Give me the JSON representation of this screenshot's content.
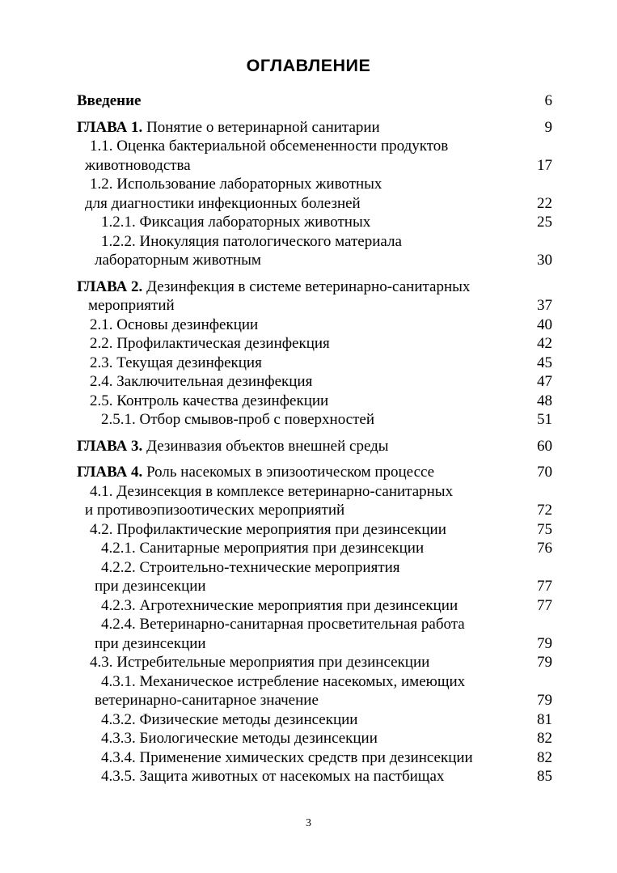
{
  "header": {
    "title": "ОГЛАВЛЕНИЕ"
  },
  "footer": {
    "page_number": "3"
  },
  "toc": {
    "entries": [
      {
        "indent": "chapter",
        "bold": "Введение",
        "text": "",
        "page": "6",
        "spaced": false
      },
      {
        "indent": "chapter",
        "bold": "ГЛАВА 1.",
        "text": " Понятие о ветеринарной санитарии",
        "page": "9",
        "spaced": true
      },
      {
        "indent": "section",
        "bold": "",
        "text": "1.1. Оценка бактериальной обсемененности продуктов",
        "page": "",
        "spaced": false
      },
      {
        "indent": "section-cont",
        "bold": "",
        "text": "животноводства",
        "page": "17",
        "spaced": false
      },
      {
        "indent": "section",
        "bold": "",
        "text": "1.2. Использование лабораторных животных",
        "page": "",
        "spaced": false
      },
      {
        "indent": "section-cont",
        "bold": "",
        "text": "для диагностики инфекционных болезней",
        "page": "22",
        "spaced": false
      },
      {
        "indent": "sub",
        "bold": "",
        "text": "1.2.1. Фиксация лабораторных животных",
        "page": "25",
        "spaced": false
      },
      {
        "indent": "sub",
        "bold": "",
        "text": "1.2.2. Инокуляция патологического материала",
        "page": "",
        "spaced": false
      },
      {
        "indent": "sub-cont",
        "bold": "",
        "text": "лабораторным животным",
        "page": "30",
        "spaced": false
      },
      {
        "indent": "chapter",
        "bold": "ГЛАВА 2.",
        "text": " Дезинфекция в системе ветеринарно-санитарных",
        "page": "",
        "spaced": true
      },
      {
        "indent": "chapter-cont",
        "bold": "",
        "text": "мероприятий",
        "page": "37",
        "spaced": false
      },
      {
        "indent": "section",
        "bold": "",
        "text": "2.1. Основы дезинфекции",
        "page": "40",
        "spaced": false
      },
      {
        "indent": "section",
        "bold": "",
        "text": "2.2. Профилактическая дезинфекция",
        "page": "42",
        "spaced": false
      },
      {
        "indent": "section",
        "bold": "",
        "text": "2.3. Текущая дезинфекция",
        "page": "45",
        "spaced": false
      },
      {
        "indent": "section",
        "bold": "",
        "text": "2.4. Заключительная дезинфекция",
        "page": "47",
        "spaced": false
      },
      {
        "indent": "section",
        "bold": "",
        "text": "2.5. Контроль качества дезинфекции",
        "page": "48",
        "spaced": false
      },
      {
        "indent": "sub",
        "bold": "",
        "text": "2.5.1. Отбор смывов-проб с поверхностей",
        "page": "51",
        "spaced": false
      },
      {
        "indent": "chapter",
        "bold": "ГЛАВА 3.",
        "text": " Дезинвазия объектов внешней среды",
        "page": "60",
        "spaced": true
      },
      {
        "indent": "chapter",
        "bold": "ГЛАВА 4.",
        "text": " Роль насекомых в эпизоотическом процессе",
        "page": "70",
        "spaced": true
      },
      {
        "indent": "section",
        "bold": "",
        "text": "4.1. Дезинсекция в комплексе ветеринарно-санитарных",
        "page": "",
        "spaced": false
      },
      {
        "indent": "section-cont",
        "bold": "",
        "text": "и противоэпизоотических мероприятий",
        "page": "72",
        "spaced": false
      },
      {
        "indent": "section",
        "bold": "",
        "text": "4.2. Профилактические мероприятия при дезинсекции",
        "page": "75",
        "spaced": false
      },
      {
        "indent": "sub",
        "bold": "",
        "text": "4.2.1. Санитарные мероприятия при дезинсекции",
        "page": "76",
        "spaced": false
      },
      {
        "indent": "sub",
        "bold": "",
        "text": "4.2.2. Строительно-технические мероприятия",
        "page": "",
        "spaced": false
      },
      {
        "indent": "sub-cont",
        "bold": "",
        "text": "при дезинсекции",
        "page": "77",
        "spaced": false
      },
      {
        "indent": "sub",
        "bold": "",
        "text": "4.2.3. Агротехнические мероприятия при дезинсекции",
        "page": "77",
        "spaced": false
      },
      {
        "indent": "sub",
        "bold": "",
        "text": "4.2.4. Ветеринарно-санитарная просветительная работа",
        "page": "",
        "spaced": false
      },
      {
        "indent": "sub-cont",
        "bold": "",
        "text": "при дезинсекции",
        "page": "79",
        "spaced": false
      },
      {
        "indent": "section",
        "bold": "",
        "text": "4.3. Истребительные мероприятия при дезинсекции",
        "page": "79",
        "spaced": false
      },
      {
        "indent": "sub",
        "bold": "",
        "text": "4.3.1. Механическое истребление насекомых, имеющих",
        "page": "",
        "spaced": false
      },
      {
        "indent": "sub-cont",
        "bold": "",
        "text": "ветеринарно-санитарное значение",
        "page": "79",
        "spaced": false
      },
      {
        "indent": "sub",
        "bold": "",
        "text": "4.3.2. Физические методы дезинсекции",
        "page": "81",
        "spaced": false
      },
      {
        "indent": "sub",
        "bold": "",
        "text": "4.3.3. Биологические методы дезинсекции",
        "page": "82",
        "spaced": false
      },
      {
        "indent": "sub",
        "bold": "",
        "text": "4.3.4. Применение химических средств при дезинсекции",
        "page": "82",
        "spaced": false
      },
      {
        "indent": "sub",
        "bold": "",
        "text": "4.3.5. Защита животных от насекомых на пастбищах",
        "page": "85",
        "spaced": false
      }
    ]
  }
}
